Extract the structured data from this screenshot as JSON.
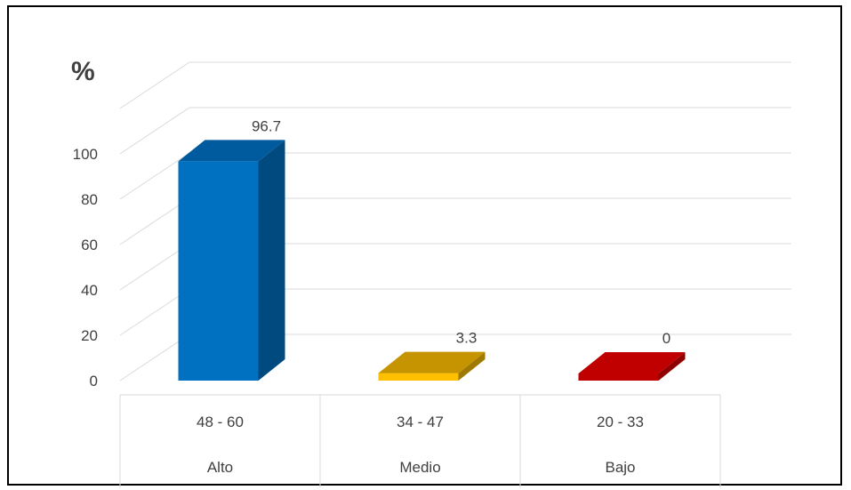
{
  "chart_data": {
    "type": "bar",
    "ylabel": "%",
    "ylim": [
      0,
      100
    ],
    "yticks": [
      "0",
      "20",
      "40",
      "60",
      "80",
      "100"
    ],
    "categories": [
      {
        "range": "48  -  60",
        "level": "Alto"
      },
      {
        "range": "34  -  47",
        "level": "Medio"
      },
      {
        "range": "20  -  33",
        "level": "Bajo"
      }
    ],
    "values": [
      96.7,
      3.3,
      0
    ],
    "data_labels": [
      "96.7",
      "3.3",
      "0"
    ],
    "colors": {
      "bars": [
        "#0070C0",
        "#FFC000",
        "#C00000"
      ],
      "bars_top": [
        "#005A9E",
        "#C59400",
        "#C00000"
      ],
      "bars_side": [
        "#004A80",
        "#A07A00",
        "#900000"
      ],
      "grid": "#D9D9D9",
      "text": "#404040"
    },
    "grid": true,
    "style": "3d-column"
  }
}
